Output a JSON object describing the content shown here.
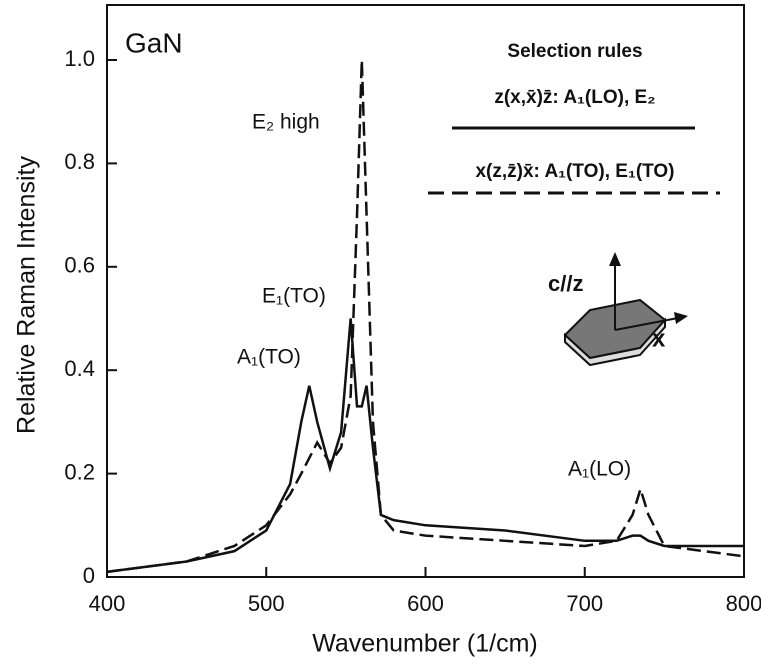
{
  "chart_data": {
    "type": "line",
    "x_label": "Wavenumber (1/cm)",
    "y_label": "Relative Raman Intensity",
    "x": [
      400,
      450,
      480,
      500,
      515,
      522,
      527,
      532,
      540,
      547,
      553,
      557,
      560,
      563,
      567,
      572,
      580,
      600,
      650,
      700,
      720,
      730,
      735,
      740,
      750,
      800
    ],
    "series": [
      {
        "name": "z(x,x̄)z̄: A₁(LO), E₂",
        "color": "#111111",
        "dash": "solid",
        "values": [
          0.01,
          0.03,
          0.05,
          0.09,
          0.18,
          0.3,
          0.37,
          0.3,
          0.21,
          0.28,
          0.5,
          0.33,
          0.33,
          0.37,
          0.25,
          0.12,
          0.11,
          0.1,
          0.09,
          0.07,
          0.07,
          0.08,
          0.08,
          0.07,
          0.06,
          0.06
        ]
      },
      {
        "name": "x(z,z̄)x̄: A₁(TO), E₁(TO)",
        "color": "#111111",
        "dash": "dashed",
        "values": [
          0.01,
          0.03,
          0.06,
          0.1,
          0.16,
          0.2,
          0.23,
          0.26,
          0.22,
          0.25,
          0.35,
          0.7,
          1.0,
          0.7,
          0.3,
          0.12,
          0.09,
          0.08,
          0.07,
          0.06,
          0.07,
          0.12,
          0.17,
          0.12,
          0.06,
          0.04
        ]
      }
    ],
    "legend_title": "Selection rules",
    "annotations": [
      "GaN",
      "E₂ high",
      "E₁(TO)",
      "A₁(TO)",
      "A₁(LO)",
      "c//z",
      "x"
    ],
    "xlim": [
      400,
      800
    ],
    "xticks": [
      400,
      500,
      600,
      700,
      800
    ],
    "ylim": [
      0,
      1.0
    ],
    "yticks": [
      0,
      0.2,
      0.4,
      0.6,
      {
        "value": 1.0,
        "label": "1.0"
      },
      0.8
    ]
  }
}
